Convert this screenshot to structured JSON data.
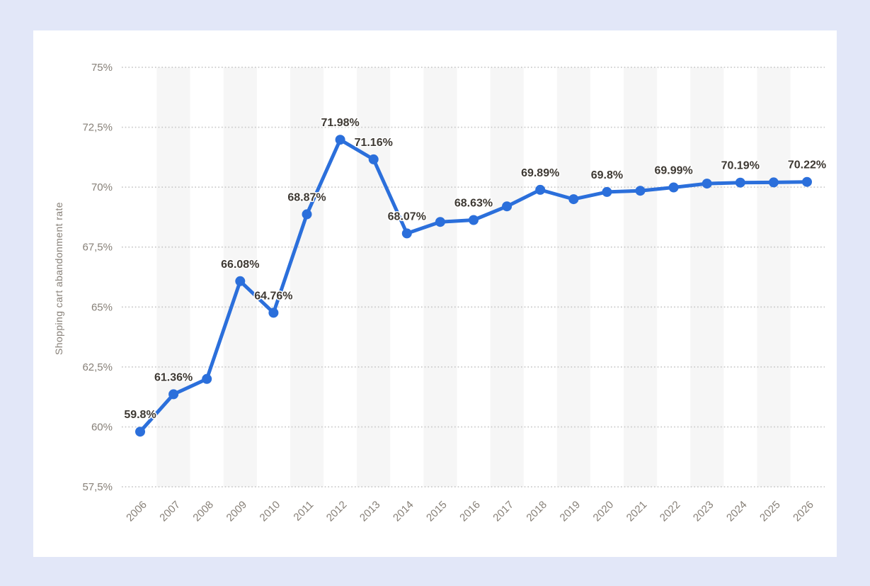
{
  "colors": {
    "page_background": "#e2e7f8",
    "card_background": "#ffffff",
    "line": "#2b6fdb",
    "marker": "#2b6fdb",
    "data_label": "#3e3933",
    "axis_label": "#878078",
    "column_stripe": "#f6f6f6",
    "gridline": "#c9c9c9"
  },
  "chart_data": {
    "type": "line",
    "title": "",
    "xlabel": "",
    "ylabel": "Shopping cart abandonment rate",
    "x": [
      "2006",
      "2007",
      "2008",
      "2009",
      "2010",
      "2011",
      "2012",
      "2013",
      "2014",
      "2015",
      "2016",
      "2017",
      "2018",
      "2019",
      "2020",
      "2021",
      "2022",
      "2023",
      "2024",
      "2025",
      "2026"
    ],
    "series": [
      {
        "name": "Shopping cart abandonment rate",
        "color": "#2b6fdb",
        "values": [
          59.8,
          61.36,
          62.0,
          66.08,
          64.76,
          68.87,
          71.98,
          71.16,
          68.07,
          68.55,
          68.63,
          69.2,
          69.89,
          69.5,
          69.8,
          69.85,
          69.99,
          70.15,
          70.19,
          70.2,
          70.22
        ],
        "point_labels": [
          "59.8%",
          "61.36%",
          "",
          "66.08%",
          "64.76%",
          "68.87%",
          "71.98%",
          "71.16%",
          "68.07%",
          "",
          "68.63%",
          "",
          "69.89%",
          "",
          "69.8%",
          "",
          "69.99%",
          "",
          "70.19%",
          "",
          "70.22%"
        ]
      }
    ],
    "y_ticks": [
      {
        "value": 75,
        "label": "75%"
      },
      {
        "value": 72.5,
        "label": "72,5%"
      },
      {
        "value": 70,
        "label": "70%"
      },
      {
        "value": 67.5,
        "label": "67,5%"
      },
      {
        "value": 65,
        "label": "65%"
      },
      {
        "value": 62.5,
        "label": "62,5%"
      },
      {
        "value": 60,
        "label": "60%"
      },
      {
        "value": 57.5,
        "label": "57,5%"
      }
    ],
    "ylim": [
      57.5,
      75
    ],
    "grid": "horizontal-dotted",
    "legend": "none",
    "background_stripes": "alternating-vertical-on-odd-years"
  }
}
